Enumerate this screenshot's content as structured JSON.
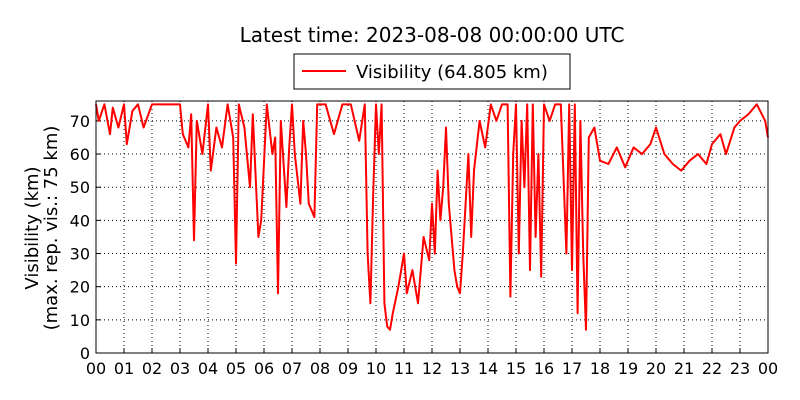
{
  "chart_data": {
    "type": "line",
    "title": "Latest time: 2023-08-08 00:00:00 UTC",
    "y_label": [
      "Visibility (km)",
      "(max. rep. vis.: 75 km)"
    ],
    "x": [
      0,
      0.1,
      0.3,
      0.5,
      0.6,
      0.8,
      1.0,
      1.1,
      1.3,
      1.5,
      1.7,
      2.0,
      2.3,
      2.6,
      3.0,
      3.1,
      3.3,
      3.4,
      3.5,
      3.6,
      3.8,
      4.0,
      4.1,
      4.3,
      4.5,
      4.7,
      4.9,
      5.0,
      5.1,
      5.3,
      5.5,
      5.6,
      5.8,
      5.9,
      6.1,
      6.3,
      6.4,
      6.5,
      6.6,
      6.8,
      6.9,
      7.0,
      7.1,
      7.3,
      7.4,
      7.5,
      7.6,
      7.8,
      7.9,
      8.2,
      8.5,
      8.8,
      9.1,
      9.4,
      9.6,
      9.7,
      9.8,
      9.9,
      10.0,
      10.1,
      10.2,
      10.3,
      10.4,
      10.5,
      10.6,
      10.8,
      11.0,
      11.1,
      11.3,
      11.5,
      11.7,
      11.9,
      12.0,
      12.1,
      12.2,
      12.3,
      12.4,
      12.5,
      12.6,
      12.8,
      12.9,
      13.0,
      13.1,
      13.2,
      13.3,
      13.4,
      13.5,
      13.7,
      13.9,
      14.1,
      14.3,
      14.5,
      14.7,
      14.8,
      14.9,
      15.0,
      15.1,
      15.2,
      15.3,
      15.4,
      15.5,
      15.6,
      15.7,
      15.8,
      15.9,
      16.0,
      16.2,
      16.4,
      16.6,
      16.8,
      16.9,
      17.0,
      17.1,
      17.2,
      17.3,
      17.4,
      17.5,
      17.6,
      17.8,
      18.0,
      18.3,
      18.6,
      18.9,
      19.2,
      19.5,
      19.8,
      20.0,
      20.3,
      20.6,
      20.9,
      21.2,
      21.5,
      21.8,
      22.0,
      22.3,
      22.5,
      22.8,
      23.0,
      23.3,
      23.6,
      23.9,
      24.0
    ],
    "series": [
      {
        "name": "Visibility (64.805 km)",
        "color": "#ff0000",
        "values": [
          75,
          70,
          75,
          66,
          74,
          68,
          75,
          63,
          73,
          75,
          68,
          75,
          75,
          75,
          75,
          66,
          62,
          72,
          34,
          70,
          60,
          75,
          55,
          68,
          62,
          75,
          65,
          27,
          75,
          68,
          50,
          72,
          35,
          40,
          75,
          60,
          65,
          18,
          70,
          44,
          62,
          75,
          60,
          45,
          70,
          60,
          45,
          41,
          75,
          75,
          66,
          75,
          75,
          64,
          75,
          30,
          15,
          48,
          75,
          60,
          75,
          15,
          8,
          7,
          12,
          20,
          30,
          18,
          25,
          15,
          35,
          28,
          45,
          30,
          55,
          40,
          50,
          68,
          45,
          25,
          20,
          18,
          30,
          45,
          60,
          35,
          55,
          70,
          62,
          75,
          70,
          75,
          75,
          17,
          60,
          75,
          30,
          70,
          50,
          75,
          25,
          75,
          35,
          60,
          23,
          75,
          70,
          75,
          75,
          30,
          75,
          25,
          75,
          12,
          70,
          30,
          7,
          65,
          68,
          58,
          57,
          62,
          56,
          62,
          60,
          63,
          68,
          60,
          57,
          55,
          58,
          60,
          57,
          63,
          66,
          60,
          68,
          70,
          72,
          75,
          70,
          65
        ]
      }
    ],
    "xlim": [
      0,
      24
    ],
    "xticks": [
      {
        "value": 0,
        "label": "00"
      },
      {
        "value": 1,
        "label": "01"
      },
      {
        "value": 2,
        "label": "02"
      },
      {
        "value": 3,
        "label": "03"
      },
      {
        "value": 4,
        "label": "04"
      },
      {
        "value": 5,
        "label": "05"
      },
      {
        "value": 6,
        "label": "06"
      },
      {
        "value": 7,
        "label": "07"
      },
      {
        "value": 8,
        "label": "08"
      },
      {
        "value": 9,
        "label": "09"
      },
      {
        "value": 10,
        "label": "10"
      },
      {
        "value": 11,
        "label": "11"
      },
      {
        "value": 12,
        "label": "12"
      },
      {
        "value": 13,
        "label": "13"
      },
      {
        "value": 14,
        "label": "14"
      },
      {
        "value": 15,
        "label": "15"
      },
      {
        "value": 16,
        "label": "16"
      },
      {
        "value": 17,
        "label": "17"
      },
      {
        "value": 18,
        "label": "18"
      },
      {
        "value": 19,
        "label": "19"
      },
      {
        "value": 20,
        "label": "20"
      },
      {
        "value": 21,
        "label": "21"
      },
      {
        "value": 22,
        "label": "22"
      },
      {
        "value": 23,
        "label": "23"
      },
      {
        "value": 24,
        "label": "00"
      }
    ],
    "ylim": [
      0,
      76
    ],
    "yticks": [
      0,
      10,
      20,
      30,
      40,
      50,
      60,
      70
    ],
    "grid": true
  }
}
